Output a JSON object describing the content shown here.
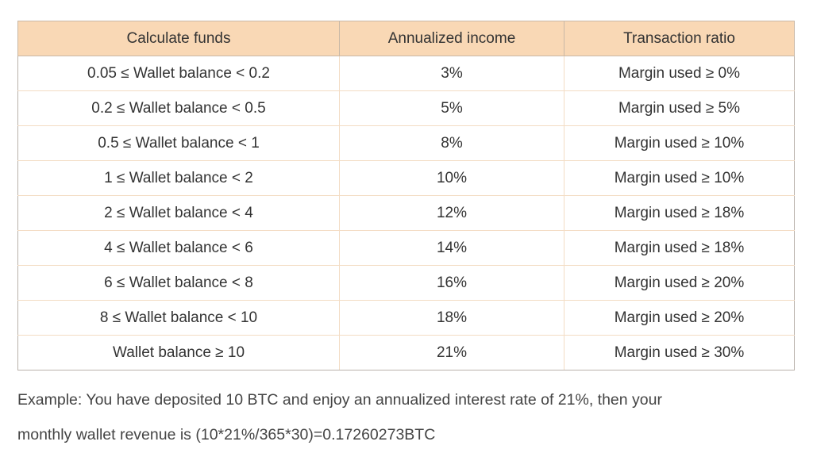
{
  "table": {
    "headers": [
      "Calculate funds",
      "Annualized income",
      "Transaction ratio"
    ],
    "rows": [
      [
        "0.05 ≤ Wallet balance < 0.2",
        "3%",
        "Margin used ≥ 0%"
      ],
      [
        "0.2 ≤ Wallet balance < 0.5",
        "5%",
        "Margin used ≥ 5%"
      ],
      [
        "0.5 ≤ Wallet balance < 1",
        "8%",
        "Margin used ≥ 10%"
      ],
      [
        "1 ≤ Wallet balance < 2",
        "10%",
        "Margin used ≥ 10%"
      ],
      [
        "2 ≤ Wallet balance < 4",
        "12%",
        "Margin used ≥ 18%"
      ],
      [
        "4 ≤ Wallet balance < 6",
        "14%",
        "Margin used ≥ 18%"
      ],
      [
        "6 ≤ Wallet balance < 8",
        "16%",
        "Margin used ≥ 20%"
      ],
      [
        "8 ≤ Wallet balance < 10",
        "18%",
        "Margin used ≥ 20%"
      ],
      [
        "Wallet balance ≥ 10",
        "21%",
        "Margin used ≥ 30%"
      ]
    ],
    "header_background": "#f9d8b5",
    "border_color": "#f3dcc4"
  },
  "example": {
    "line1": "Example: You have deposited 10 BTC and enjoy an annualized interest rate of 21%, then your",
    "line2": "monthly wallet revenue is (10*21%/365*30)=0.17260273BTC"
  }
}
